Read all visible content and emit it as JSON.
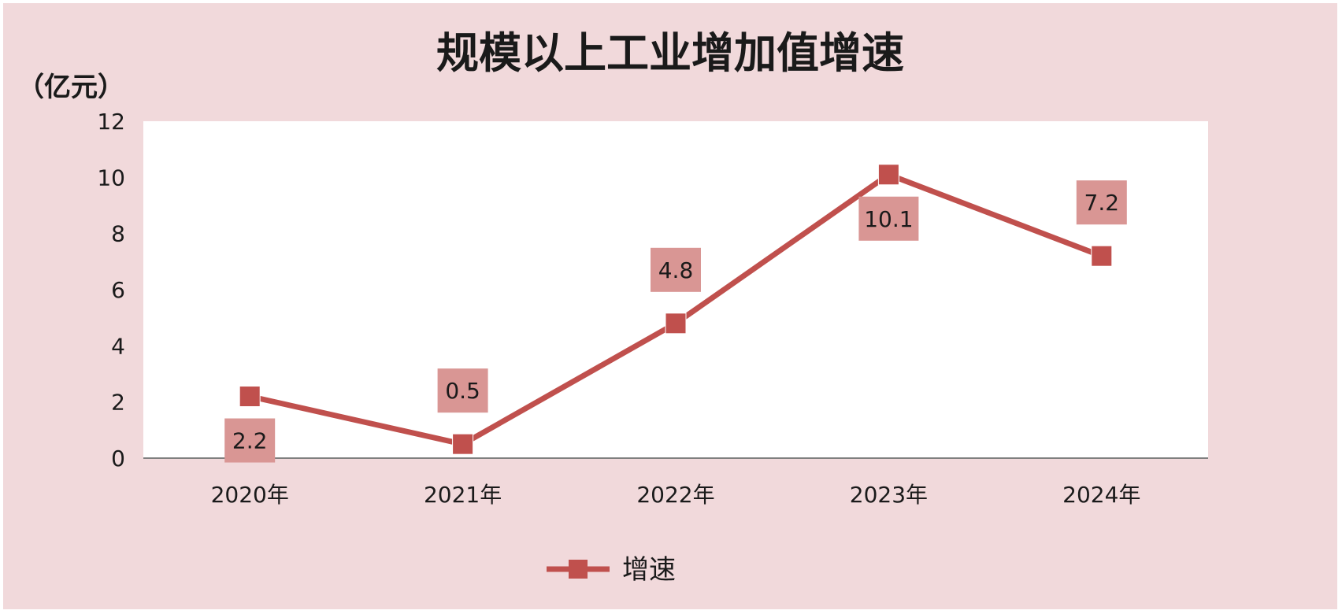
{
  "colors": {
    "background": "#f1d9db",
    "plot_background": "#ffffff",
    "series": "#c0504d",
    "label_box": "#d99694",
    "axis": "#7f7f7f"
  },
  "chart_data": {
    "type": "line",
    "title": "规模以上工业增加值增速",
    "unit_label": "（亿元）",
    "categories": [
      "2020年",
      "2021年",
      "2022年",
      "2023年",
      "2024年"
    ],
    "series": [
      {
        "name": "增速",
        "values": [
          2.2,
          0.5,
          4.8,
          10.1,
          7.2
        ],
        "data_labels": [
          "2.2",
          "0.5",
          "4.8",
          "10.1",
          "7.2"
        ]
      }
    ],
    "ylim": [
      0,
      12
    ],
    "yticks": [
      "0",
      "2",
      "4",
      "6",
      "8",
      "10",
      "12"
    ],
    "grid": false,
    "legend": "bottom",
    "label_positions": [
      "below",
      "above",
      "above",
      "below",
      "above"
    ]
  }
}
